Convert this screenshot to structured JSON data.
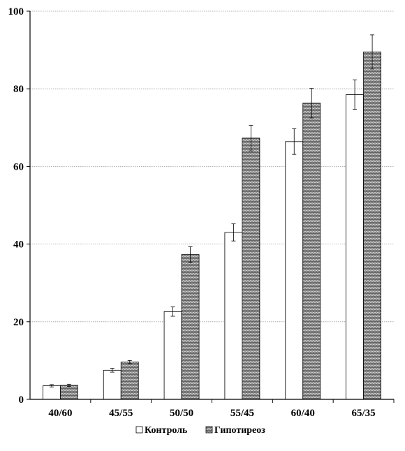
{
  "chart_data": {
    "type": "bar",
    "categories": [
      "40/60",
      "45/55",
      "50/50",
      "55/45",
      "60/40",
      "65/35"
    ],
    "series": [
      {
        "name": "Контроль",
        "values": [
          3.5,
          7.5,
          22.6,
          43.0,
          66.4,
          78.5
        ],
        "errors": [
          0.3,
          0.5,
          1.2,
          2.2,
          3.3,
          3.8
        ],
        "fill": "#ffffff",
        "pattern": "plain"
      },
      {
        "name": "Гипотиреоз",
        "values": [
          3.6,
          9.6,
          37.3,
          67.3,
          76.3,
          89.5
        ],
        "errors": [
          0.3,
          0.4,
          2.0,
          3.3,
          3.8,
          4.4
        ],
        "fill": "#bdbdbd",
        "pattern": "brick"
      }
    ],
    "ylim": [
      0,
      100
    ],
    "yticks": [
      "0",
      "20",
      "40",
      "60",
      "80",
      "100"
    ],
    "grid": true,
    "legend_position": "bottom-center",
    "title": "",
    "xlabel": "",
    "ylabel": ""
  }
}
